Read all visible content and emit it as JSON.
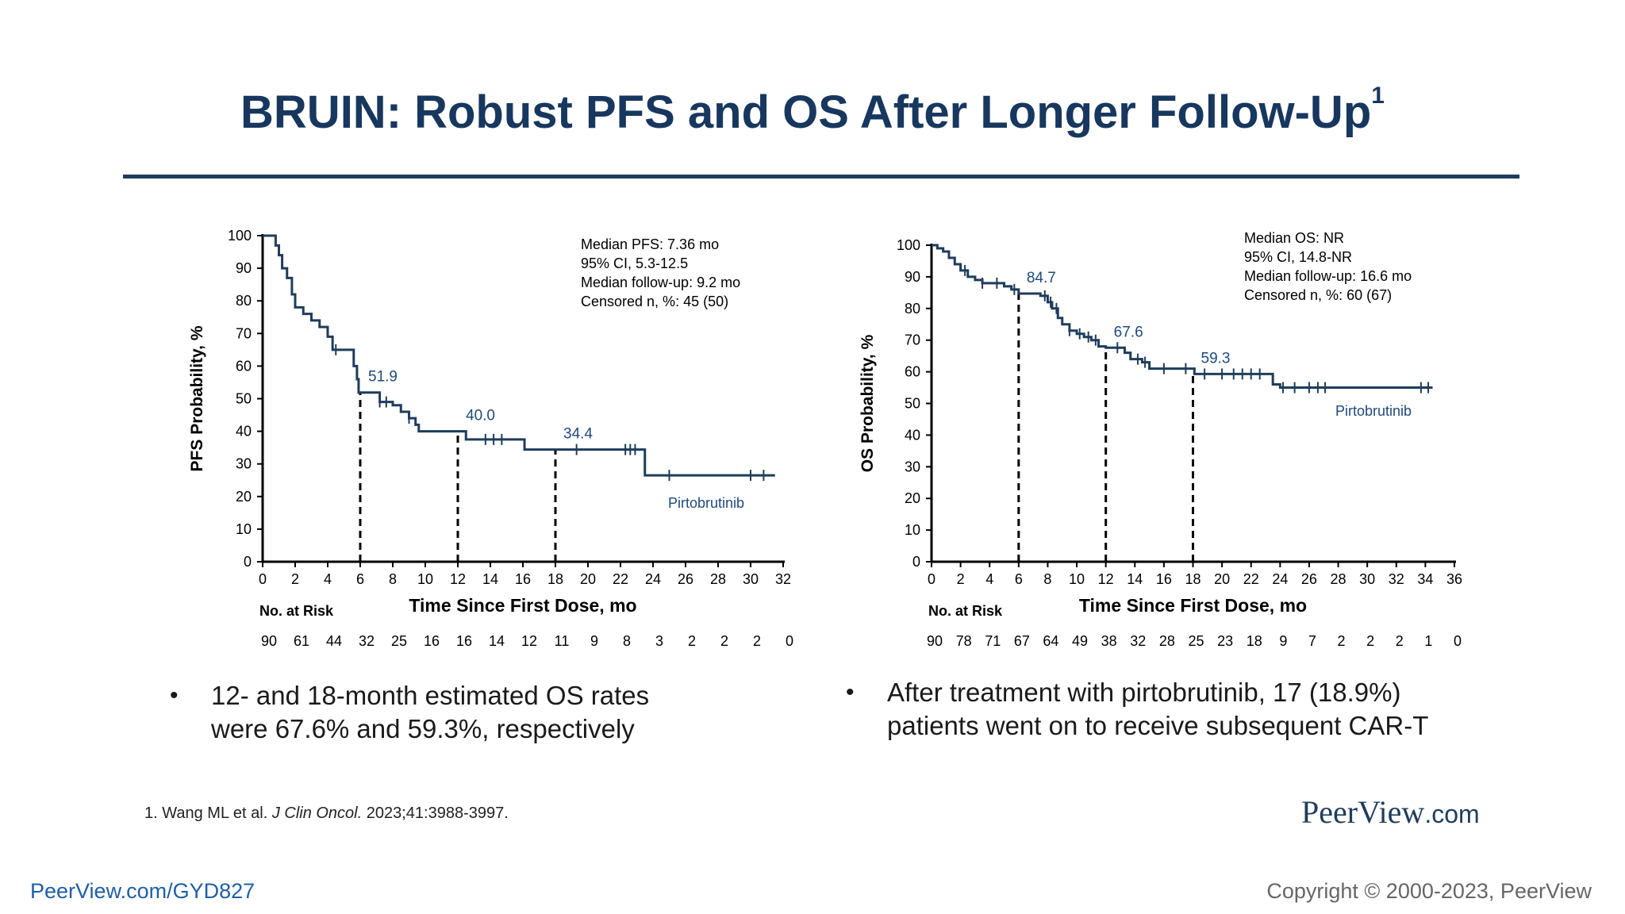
{
  "slide": {
    "title": "BRUIN: Robust PFS and OS After Longer Follow-Up",
    "title_superscript": "1",
    "bullets": [
      {
        "lines": [
          "12- and 18-month estimated OS rates",
          "were 67.6% and 59.3%, respectively"
        ]
      },
      {
        "lines": [
          "After treatment with pirtobrutinib, 17 (18.9%)",
          "patients went on to receive subsequent CAR-T"
        ]
      }
    ],
    "bullet_symbol": "•",
    "footnote": {
      "prefix": "1. Wang ML et al. ",
      "journal": "J Clin Oncol.",
      "suffix": " 2023;41:3988-3997."
    },
    "logo": {
      "main": "PeerView",
      "suffix": ".com"
    },
    "bottom_url": "PeerView.com/GYD827",
    "copyright": "Copyright © 2000-2023, PeerView",
    "colors": {
      "title": "#17375e",
      "curve": "#1f3d5c",
      "annotation": "#1f497d",
      "url": "#1f5fa6"
    }
  },
  "chart_data": [
    {
      "type": "line",
      "title": "",
      "xlabel": "Time Since First Dose, mo",
      "ylabel": "PFS Probability, %",
      "xlim": [
        0,
        32
      ],
      "ylim": [
        0,
        100
      ],
      "x_ticks": [
        0,
        2,
        4,
        6,
        8,
        10,
        12,
        14,
        16,
        18,
        20,
        22,
        24,
        26,
        28,
        30,
        32
      ],
      "y_ticks": [
        0,
        10,
        20,
        30,
        40,
        50,
        60,
        70,
        80,
        90,
        100
      ],
      "series": [
        {
          "name": "Pirtobrutinib",
          "steps": [
            [
              0,
              100
            ],
            [
              0.7,
              100
            ],
            [
              0.8,
              97
            ],
            [
              1.0,
              94
            ],
            [
              1.2,
              90
            ],
            [
              1.5,
              87
            ],
            [
              1.8,
              82
            ],
            [
              2.0,
              78
            ],
            [
              2.5,
              76
            ],
            [
              3.0,
              74
            ],
            [
              3.5,
              72
            ],
            [
              4.0,
              69
            ],
            [
              4.3,
              65
            ],
            [
              5.5,
              65
            ],
            [
              5.6,
              60
            ],
            [
              5.8,
              56
            ],
            [
              5.9,
              51.9
            ],
            [
              7.0,
              51.9
            ],
            [
              7.2,
              49
            ],
            [
              8.0,
              48
            ],
            [
              8.5,
              46
            ],
            [
              9.0,
              44
            ],
            [
              9.4,
              42
            ],
            [
              9.6,
              40.0
            ],
            [
              12.3,
              40.0
            ],
            [
              12.5,
              37.5
            ],
            [
              16.0,
              37.5
            ],
            [
              16.1,
              34.4
            ],
            [
              23.4,
              34.4
            ],
            [
              23.5,
              26.5
            ],
            [
              31.5,
              26.5
            ]
          ],
          "censor_x": [
            4.5,
            7.2,
            7.6,
            9.0,
            13.7,
            14.2,
            14.7,
            19.3,
            22.3,
            22.6,
            22.9,
            25.0,
            30.0,
            30.8
          ]
        }
      ],
      "annotations": [
        {
          "x": 6,
          "y": 51.9,
          "label": "51.9"
        },
        {
          "x": 12,
          "y": 40.0,
          "label": "40.0"
        },
        {
          "x": 18,
          "y": 34.4,
          "label": "34.4"
        }
      ],
      "stats_box": [
        "Median PFS: 7.36 mo",
        "95% CI, 5.3-12.5",
        "Median follow-up: 9.2 mo",
        "Censored n, %: 45 (50)"
      ],
      "at_risk_label": "No. at Risk",
      "at_risk": [
        "90",
        "61",
        "44",
        "32",
        "25",
        "16",
        "16",
        "14",
        "12",
        "11",
        "9",
        "8",
        "3",
        "2",
        "2",
        "2",
        "0"
      ],
      "grid": false,
      "legend": "curve label bottom-right"
    },
    {
      "type": "line",
      "title": "",
      "xlabel": "Time Since First Dose, mo",
      "ylabel": "OS Probability, %",
      "xlim": [
        0,
        36
      ],
      "ylim": [
        0,
        100
      ],
      "x_ticks": [
        0,
        2,
        4,
        6,
        8,
        10,
        12,
        14,
        16,
        18,
        20,
        22,
        24,
        26,
        28,
        30,
        32,
        34,
        36
      ],
      "y_ticks": [
        0,
        10,
        20,
        30,
        40,
        50,
        60,
        70,
        80,
        90,
        100
      ],
      "series": [
        {
          "name": "Pirtobrutinib",
          "steps": [
            [
              0,
              100
            ],
            [
              0.4,
              99
            ],
            [
              0.8,
              98
            ],
            [
              1.2,
              96
            ],
            [
              1.6,
              94
            ],
            [
              2.0,
              92
            ],
            [
              2.5,
              90
            ],
            [
              3.0,
              89
            ],
            [
              3.5,
              88
            ],
            [
              4.0,
              88
            ],
            [
              5.0,
              87
            ],
            [
              5.5,
              86
            ],
            [
              6.0,
              84.7
            ],
            [
              7.0,
              84.7
            ],
            [
              7.5,
              84
            ],
            [
              8.0,
              82
            ],
            [
              8.3,
              80
            ],
            [
              8.7,
              77
            ],
            [
              9.0,
              75
            ],
            [
              9.5,
              73
            ],
            [
              10.0,
              72
            ],
            [
              10.5,
              71
            ],
            [
              11.0,
              70
            ],
            [
              11.5,
              68
            ],
            [
              12.0,
              67.6
            ],
            [
              13.0,
              67.6
            ],
            [
              13.3,
              66
            ],
            [
              13.7,
              64
            ],
            [
              14.5,
              63
            ],
            [
              15.0,
              61
            ],
            [
              18.0,
              61
            ],
            [
              18.1,
              59.3
            ],
            [
              23.0,
              59.3
            ],
            [
              23.5,
              56
            ],
            [
              24.0,
              55
            ],
            [
              34.5,
              55
            ]
          ],
          "censor_x": [
            2.3,
            3.5,
            4.5,
            5.7,
            7.8,
            8.2,
            8.6,
            9.5,
            10.2,
            10.8,
            11.3,
            12.8,
            14.2,
            14.7,
            16.0,
            17.5,
            18.8,
            20.0,
            20.8,
            21.4,
            22.0,
            22.6,
            24.2,
            25.0,
            26.0,
            26.6,
            27.1,
            33.7,
            34.2
          ]
        }
      ],
      "annotations": [
        {
          "x": 6,
          "y": 84.7,
          "label": "84.7"
        },
        {
          "x": 12,
          "y": 67.6,
          "label": "67.6"
        },
        {
          "x": 18,
          "y": 59.3,
          "label": "59.3"
        }
      ],
      "stats_box": [
        "Median OS: NR",
        "95% CI, 14.8-NR",
        "Median follow-up: 16.6 mo",
        "Censored n, %: 60 (67)"
      ],
      "at_risk_label": "No. at Risk",
      "at_risk": [
        "90",
        "78",
        "71",
        "67",
        "64",
        "49",
        "38",
        "32",
        "28",
        "25",
        "23",
        "18",
        "9",
        "7",
        "2",
        "2",
        "2",
        "1",
        "0"
      ],
      "grid": false,
      "legend": "curve label right"
    }
  ]
}
